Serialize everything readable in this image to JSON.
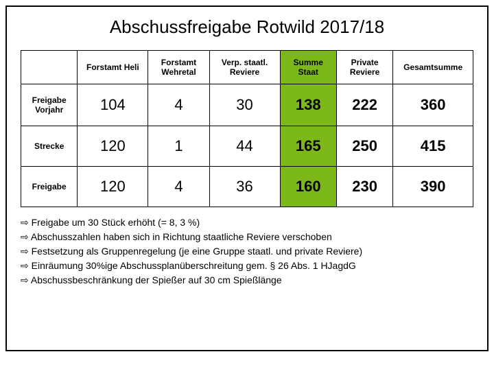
{
  "title": "Abschussfreigabe Rotwild 2017/18",
  "columns": [
    "",
    "Forstamt Heli",
    "Forstamt Wehretal",
    "Verp. staatl. Reviere",
    "Summe Staat",
    "Private Reviere",
    "Gesamtsumme"
  ],
  "rows": [
    {
      "label": "Freigabe Vorjahr",
      "cells": [
        "104",
        "4",
        "30",
        "138",
        "222",
        "360"
      ]
    },
    {
      "label": "Strecke",
      "cells": [
        "120",
        "1",
        "44",
        "165",
        "250",
        "415"
      ]
    },
    {
      "label": "Freigabe",
      "cells": [
        "120",
        "4",
        "36",
        "160",
        "230",
        "390"
      ]
    }
  ],
  "highlight_col_index": 4,
  "bold_value_cols": [
    4,
    5,
    6
  ],
  "notes": [
    "Freigabe um 30 Stück erhöht (= 8, 3 %)",
    "Abschusszahlen haben sich in Richtung staatliche Reviere verschoben",
    "Festsetzung als Gruppenregelung (je eine Gruppe staatl. und private Reviere)",
    "Einräumung 30%ige Abschussplanüberschreitung gem. § 26 Abs. 1 HJagdG",
    "Abschussbeschränkung der Spießer auf 30 cm Spießlänge"
  ],
  "colors": {
    "highlight": "#7db81b",
    "border": "#000000",
    "background": "#ffffff",
    "text": "#000000"
  }
}
